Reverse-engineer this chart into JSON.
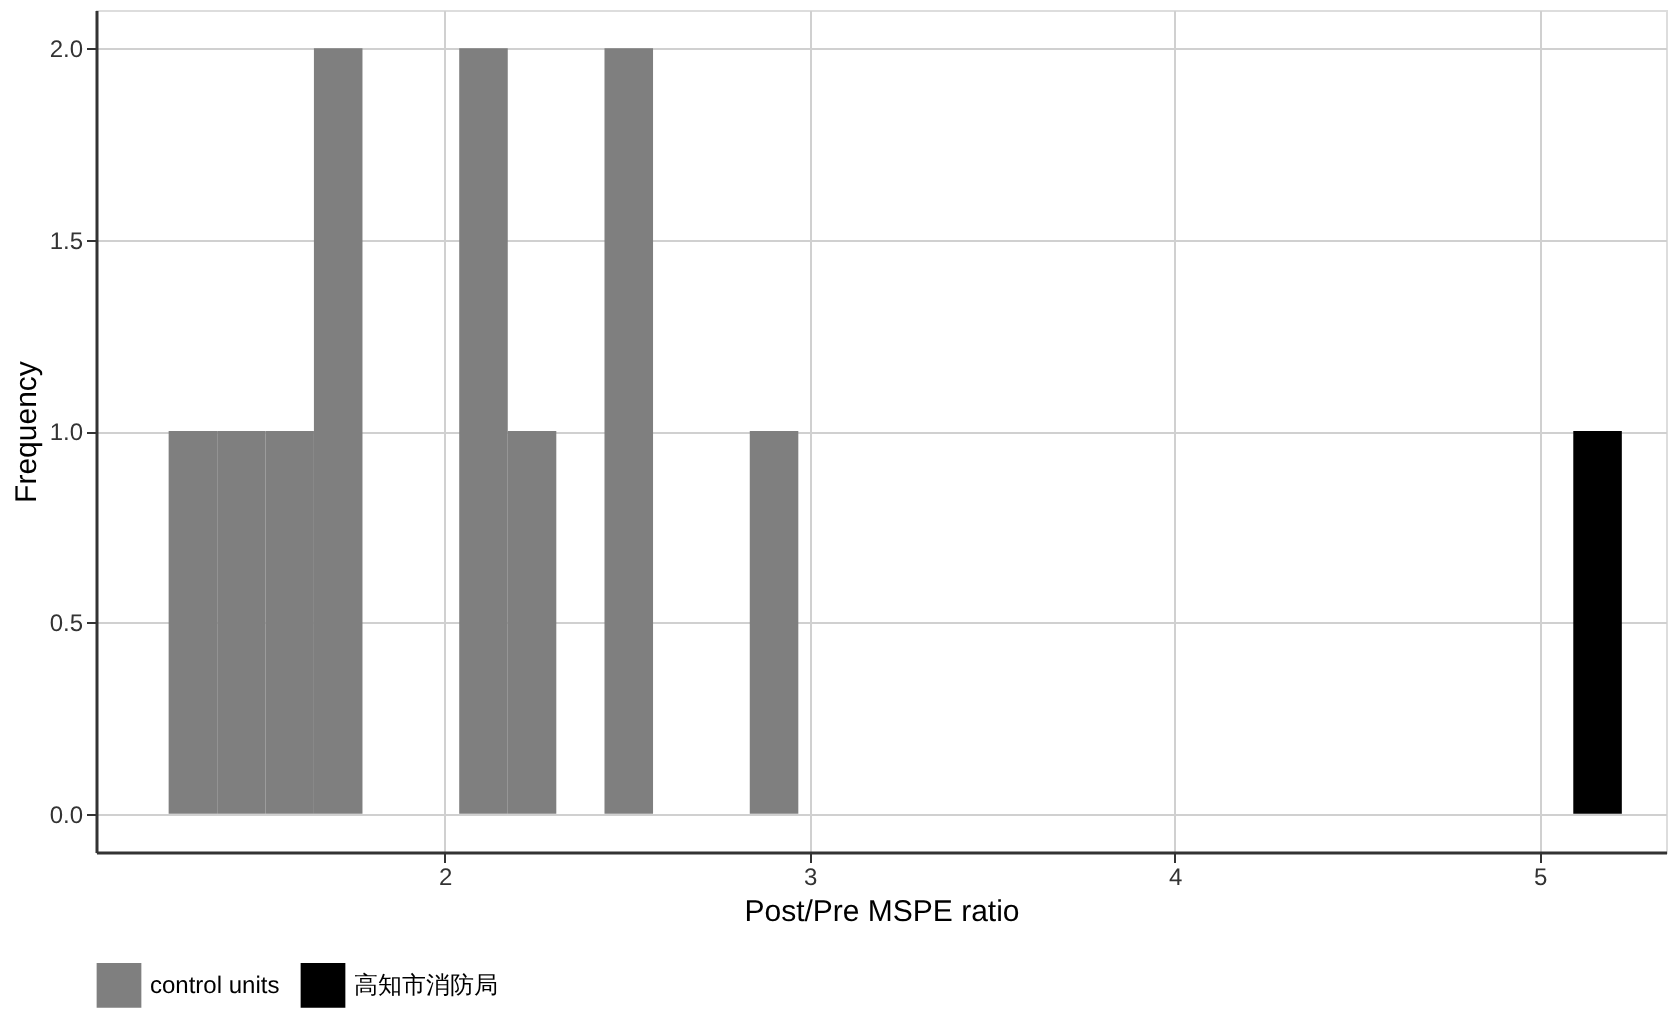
{
  "chart_data": {
    "type": "histogram",
    "xlabel": "Post/Pre MSPE ratio",
    "ylabel": "Frequency",
    "bins": [
      1.244,
      1.377,
      1.509,
      1.642,
      1.775,
      1.908,
      2.04,
      2.173,
      2.306,
      2.438,
      2.571,
      2.704,
      2.836,
      2.969,
      3.102,
      3.235,
      3.367,
      3.5,
      3.633,
      3.765,
      3.898,
      4.031,
      4.163,
      4.296,
      4.429,
      4.562,
      4.694,
      4.827,
      4.96,
      5.092,
      5.225
    ],
    "series": [
      {
        "name": "control units",
        "color": "#7f7f7f",
        "values": [
          1,
          1,
          1,
          2,
          0,
          0,
          2,
          1,
          0,
          2,
          0,
          0,
          1,
          0,
          0,
          0,
          0,
          0,
          0,
          0,
          0,
          0,
          0,
          0,
          0,
          0,
          0,
          0,
          0,
          0
        ]
      },
      {
        "name": "高知市消防局",
        "color": "#000000",
        "values": [
          0,
          0,
          0,
          0,
          0,
          0,
          0,
          0,
          0,
          0,
          0,
          0,
          0,
          0,
          0,
          0,
          0,
          0,
          0,
          0,
          0,
          0,
          0,
          0,
          0,
          0,
          0,
          0,
          0,
          1
        ]
      }
    ],
    "xlim": [
      1.045,
      5.346
    ],
    "xticks": [
      2,
      3,
      4,
      5
    ],
    "ylim": [
      -0.1,
      2.1
    ],
    "yticks": [
      {
        "value": 0,
        "label": "0.0"
      },
      {
        "value": 0.5,
        "label": "0.5"
      },
      {
        "value": 1,
        "label": "1.0"
      },
      {
        "value": 1.5,
        "label": "1.5"
      },
      {
        "value": 2,
        "label": "2.0"
      }
    ],
    "grid": true,
    "legend": "bottom"
  }
}
